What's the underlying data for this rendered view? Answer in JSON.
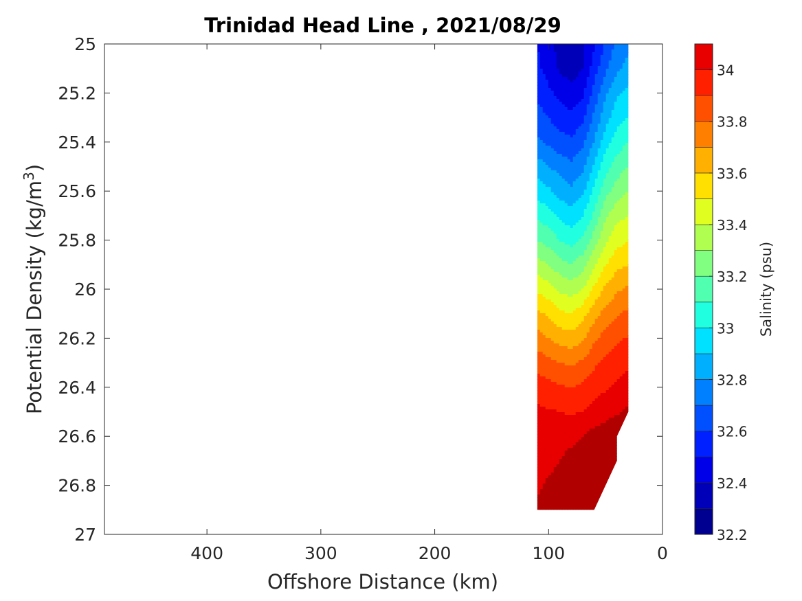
{
  "chart_data": {
    "type": "heatmap",
    "subtype": "filled-contour",
    "title": "Trinidad Head Line , 2021/08/29",
    "xlabel": "Offshore Distance (km)",
    "ylabel": "Potential Density (kg/m",
    "ylabel_sup": "3",
    "ylabel_close": ")",
    "xlim": [
      490,
      0
    ],
    "x_reversed": true,
    "x_ticks": [
      400,
      300,
      200,
      100,
      0
    ],
    "x_tick_labels": [
      "400",
      "300",
      "200",
      "100",
      "0"
    ],
    "ylim": [
      25,
      27
    ],
    "y_reversed": true,
    "y_ticks": [
      25,
      25.2,
      25.4,
      25.6,
      25.8,
      26,
      26.2,
      26.4,
      26.6,
      26.8,
      27
    ],
    "y_tick_labels": [
      "25",
      "25.2",
      "25.4",
      "25.6",
      "25.8",
      "26",
      "26.2",
      "26.4",
      "26.6",
      "26.8",
      "27"
    ],
    "colorbar": {
      "label": "Salinity (psu)",
      "range": [
        32.2,
        34.1
      ],
      "levels": [
        32.2,
        32.3,
        32.4,
        32.5,
        32.6,
        32.7,
        32.8,
        32.9,
        33.0,
        33.1,
        33.2,
        33.3,
        33.4,
        33.5,
        33.6,
        33.7,
        33.8,
        33.9,
        34.0,
        34.1
      ],
      "ticks": [
        32.2,
        32.4,
        32.6,
        32.8,
        33,
        33.2,
        33.4,
        33.6,
        33.8,
        34
      ],
      "tick_labels": [
        "32.2",
        "32.4",
        "32.6",
        "32.8",
        "33",
        "33.2",
        "33.4",
        "33.6",
        "33.8",
        "34"
      ],
      "colors": [
        "#000090",
        "#0000b8",
        "#0000e8",
        "#0020ff",
        "#0050ff",
        "#0080ff",
        "#00b0ff",
        "#00e0ff",
        "#20ffe0",
        "#50ffb0",
        "#80ff80",
        "#b0ff50",
        "#e0ff20",
        "#ffe000",
        "#ffb000",
        "#ff8000",
        "#ff5000",
        "#ff2000",
        "#e80000",
        "#b00000"
      ]
    },
    "x": [
      110,
      100,
      90,
      80,
      70,
      60,
      50,
      40,
      30
    ],
    "y": [
      25,
      25.1,
      25.2,
      25.3,
      25.4,
      25.5,
      25.6,
      25.7,
      25.8,
      25.9,
      26,
      26.1,
      26.2,
      26.3,
      26.4,
      26.5,
      26.6,
      26.7,
      26.8,
      26.9
    ],
    "salinity": [
      [
        32.5,
        32.45,
        32.35,
        32.32,
        32.38,
        32.48,
        32.62,
        32.72,
        32.78
      ],
      [
        32.52,
        32.46,
        32.38,
        32.35,
        32.4,
        32.55,
        32.68,
        32.78,
        32.83
      ],
      [
        32.58,
        32.52,
        32.47,
        32.44,
        32.48,
        32.64,
        32.78,
        32.88,
        32.93
      ],
      [
        32.64,
        32.6,
        32.55,
        32.52,
        32.58,
        32.72,
        32.86,
        32.96,
        33.0
      ],
      [
        32.72,
        32.68,
        32.64,
        32.62,
        32.68,
        32.8,
        32.96,
        33.05,
        33.1
      ],
      [
        32.85,
        32.8,
        32.76,
        32.72,
        32.78,
        32.92,
        33.06,
        33.15,
        33.2
      ],
      [
        32.96,
        32.92,
        32.86,
        32.82,
        32.88,
        33.02,
        33.16,
        33.25,
        33.3
      ],
      [
        33.08,
        33.04,
        32.98,
        32.94,
        33.0,
        33.12,
        33.28,
        33.37,
        33.4
      ],
      [
        33.2,
        33.16,
        33.1,
        33.06,
        33.12,
        33.25,
        33.38,
        33.46,
        33.5
      ],
      [
        33.34,
        33.3,
        33.24,
        33.2,
        33.26,
        33.38,
        33.5,
        33.57,
        33.6
      ],
      [
        33.48,
        33.44,
        33.38,
        33.35,
        33.4,
        33.52,
        33.62,
        33.68,
        33.72
      ],
      [
        33.62,
        33.58,
        33.52,
        33.5,
        33.56,
        33.66,
        33.74,
        33.79,
        33.82
      ],
      [
        33.74,
        33.7,
        33.66,
        33.64,
        33.68,
        33.78,
        33.84,
        33.88,
        33.91
      ],
      [
        33.86,
        33.83,
        33.8,
        33.78,
        33.82,
        33.88,
        33.93,
        33.96,
        33.98
      ],
      [
        33.96,
        33.93,
        33.91,
        33.9,
        33.92,
        33.96,
        33.99,
        34.02,
        34.04
      ],
      [
        34.02,
        34.01,
        34.0,
        33.99,
        34.0,
        34.03,
        34.06,
        34.09,
        34.12
      ],
      [
        34.05,
        34.05,
        34.06,
        34.07,
        34.1,
        34.14,
        34.16,
        34.18,
        34.2
      ],
      [
        34.07,
        34.08,
        34.1,
        34.14,
        34.16,
        34.17,
        34.18,
        34.19,
        34.2
      ],
      [
        34.09,
        34.11,
        34.13,
        34.15,
        34.17,
        34.18,
        34.19,
        34.2,
        34.2
      ],
      [
        34.11,
        34.13,
        34.16,
        34.19,
        34.22,
        34.23,
        34.23,
        34.23,
        34.23
      ]
    ],
    "data_region_boundary": [
      [
        110,
        25.0
      ],
      [
        30,
        25.0
      ],
      [
        30,
        26.5
      ],
      [
        40,
        26.6
      ],
      [
        40,
        26.7
      ],
      [
        60,
        26.9
      ],
      [
        80,
        26.9
      ],
      [
        110,
        26.9
      ]
    ],
    "grid": false,
    "box": true
  }
}
